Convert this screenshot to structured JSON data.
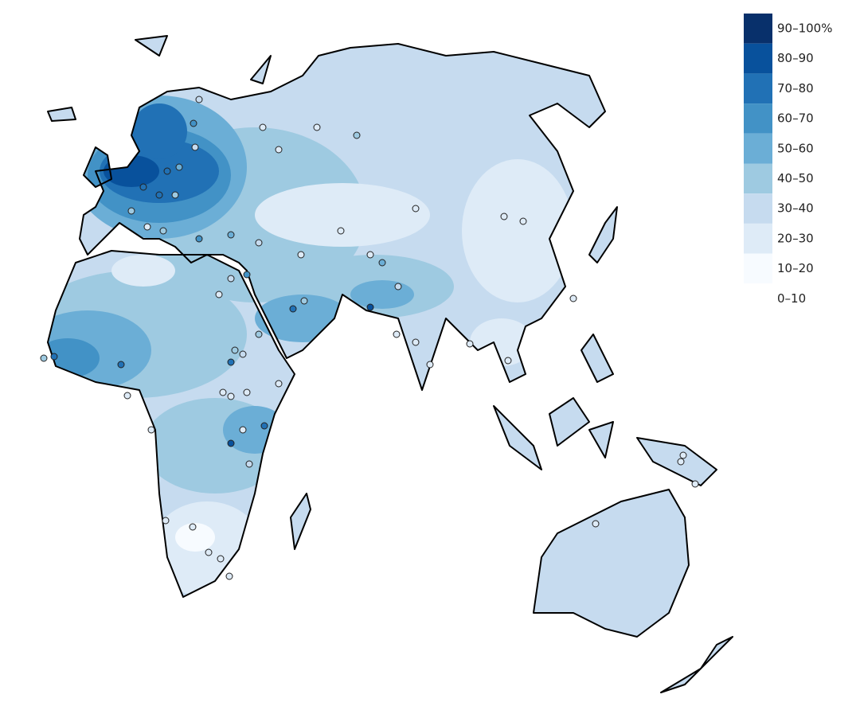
{
  "legend": {
    "items": [
      {
        "label": "90–100%",
        "color": "#08306b"
      },
      {
        "label": "80–90",
        "color": "#08519c"
      },
      {
        "label": "70–80",
        "color": "#2171b5"
      },
      {
        "label": "60–70",
        "color": "#4292c6"
      },
      {
        "label": "50–60",
        "color": "#6baed6"
      },
      {
        "label": "40–50",
        "color": "#9ecae1"
      },
      {
        "label": "30–40",
        "color": "#c6dbef"
      },
      {
        "label": "20–30",
        "color": "#deebf7"
      },
      {
        "label": "10–20",
        "color": "#f7fbff"
      },
      {
        "label": "0–10",
        "color": "#ffffff"
      }
    ]
  }
}
